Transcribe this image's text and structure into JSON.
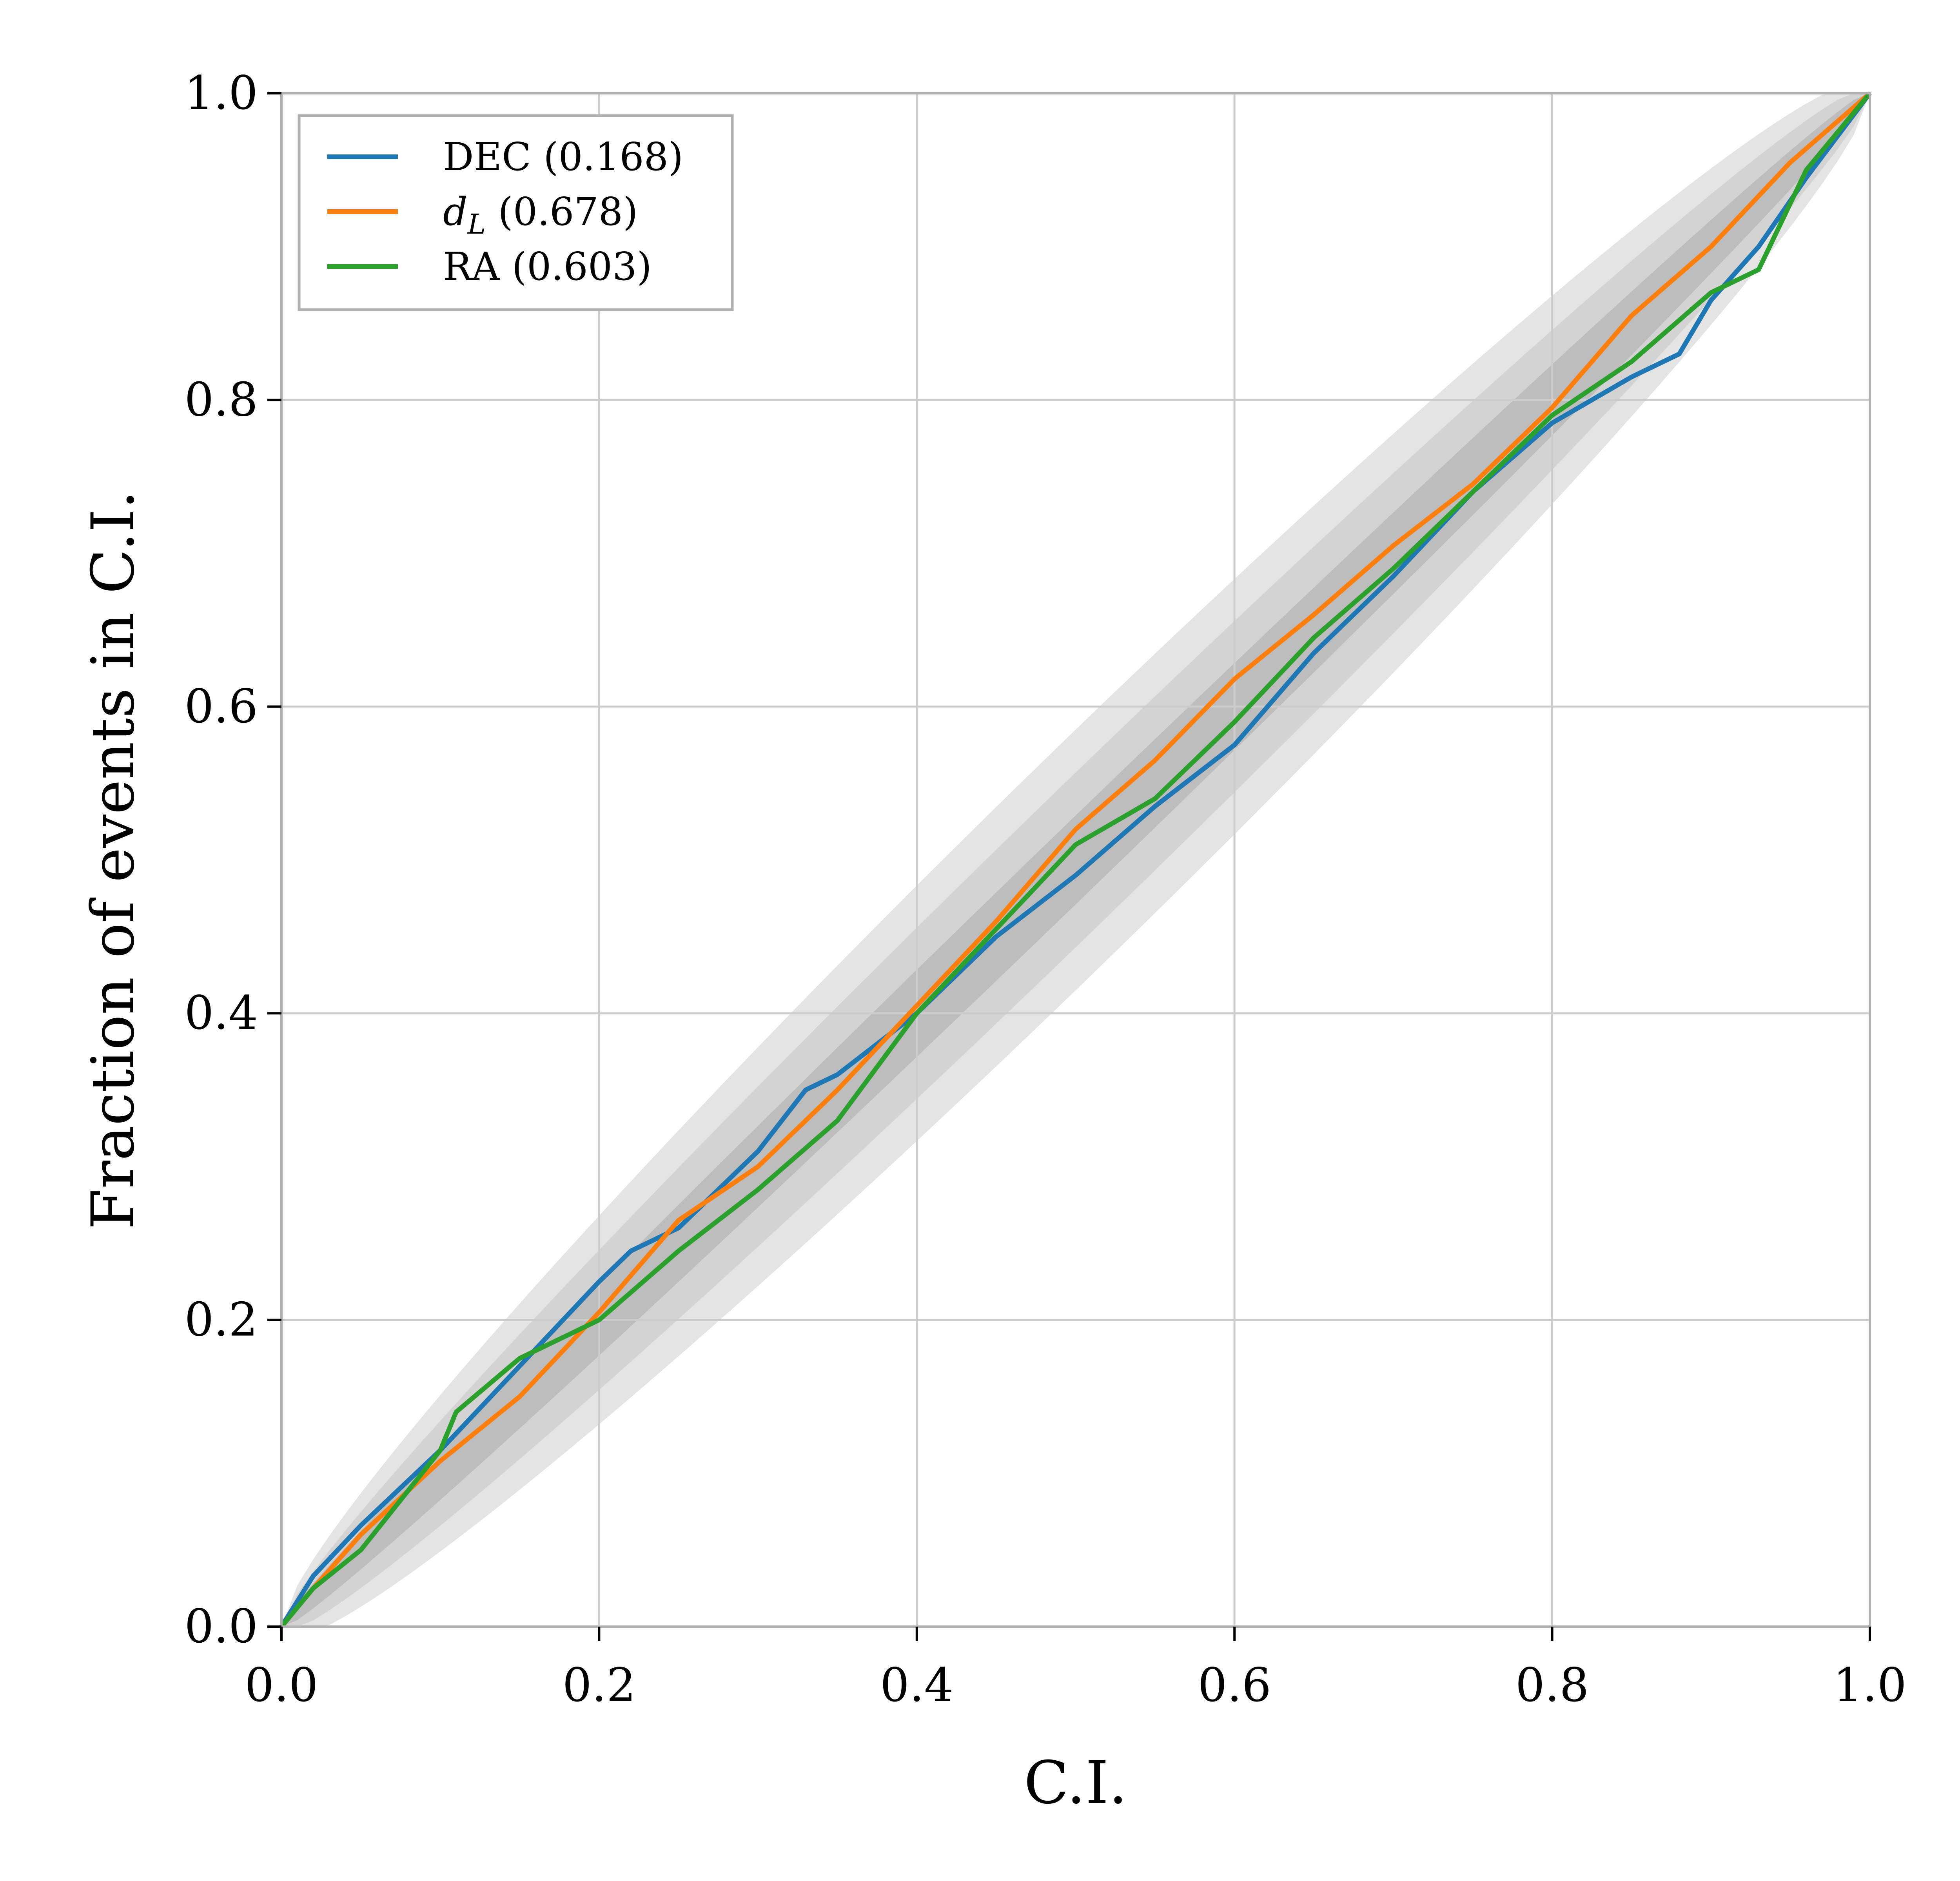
{
  "chart_data": {
    "type": "line",
    "title": "",
    "xlabel": "C.I.",
    "ylabel": "Fraction of events in C.I.",
    "xlim": [
      0.0,
      1.0
    ],
    "ylim": [
      0.0,
      1.0
    ],
    "grid": true,
    "legend_position": "top-left",
    "xticks": [
      "0.0",
      "0.2",
      "0.4",
      "0.6",
      "0.8",
      "1.0"
    ],
    "yticks": [
      "0.0",
      "0.2",
      "0.4",
      "0.6",
      "0.8",
      "1.0"
    ],
    "confidence_bands": [
      {
        "name": "3-sigma",
        "color": "#e4e4e4",
        "halfwidth_at_mid": 0.085
      },
      {
        "name": "2-sigma",
        "color": "#d3d3d3",
        "halfwidth_at_mid": 0.057
      },
      {
        "name": "1-sigma",
        "color": "#bdbdbd",
        "halfwidth_at_mid": 0.029
      }
    ],
    "series": [
      {
        "name": "DEC",
        "pvalue": "(0.168)",
        "color": "#1f77b4",
        "x": [
          0,
          0.02,
          0.05,
          0.1,
          0.15,
          0.2,
          0.22,
          0.25,
          0.3,
          0.33,
          0.35,
          0.4,
          0.45,
          0.5,
          0.55,
          0.6,
          0.65,
          0.7,
          0.75,
          0.8,
          0.85,
          0.88,
          0.9,
          0.93,
          0.96,
          1.0
        ],
        "y": [
          0,
          0.033,
          0.066,
          0.115,
          0.17,
          0.225,
          0.245,
          0.26,
          0.31,
          0.35,
          0.36,
          0.4,
          0.45,
          0.49,
          0.535,
          0.575,
          0.635,
          0.685,
          0.74,
          0.785,
          0.815,
          0.83,
          0.865,
          0.9,
          0.945,
          1.0
        ]
      },
      {
        "name": "d_L",
        "pvalue": "(0.678)",
        "color": "#ff7f0e",
        "x": [
          0,
          0.02,
          0.05,
          0.1,
          0.15,
          0.2,
          0.25,
          0.3,
          0.35,
          0.4,
          0.45,
          0.5,
          0.55,
          0.6,
          0.65,
          0.7,
          0.75,
          0.8,
          0.85,
          0.9,
          0.95,
          1.0
        ],
        "y": [
          0,
          0.025,
          0.06,
          0.108,
          0.15,
          0.205,
          0.265,
          0.3,
          0.35,
          0.405,
          0.46,
          0.52,
          0.565,
          0.618,
          0.66,
          0.705,
          0.745,
          0.795,
          0.855,
          0.9,
          0.955,
          1.0
        ]
      },
      {
        "name": "RA",
        "pvalue": "(0.603)",
        "color": "#2ca02c",
        "x": [
          0,
          0.02,
          0.05,
          0.1,
          0.11,
          0.15,
          0.2,
          0.25,
          0.3,
          0.35,
          0.4,
          0.45,
          0.5,
          0.55,
          0.6,
          0.65,
          0.7,
          0.75,
          0.8,
          0.85,
          0.9,
          0.93,
          0.96,
          1.0
        ],
        "y": [
          0,
          0.025,
          0.05,
          0.115,
          0.14,
          0.175,
          0.2,
          0.245,
          0.285,
          0.33,
          0.4,
          0.455,
          0.51,
          0.54,
          0.59,
          0.645,
          0.69,
          0.74,
          0.79,
          0.825,
          0.87,
          0.885,
          0.95,
          1.0
        ]
      }
    ]
  }
}
